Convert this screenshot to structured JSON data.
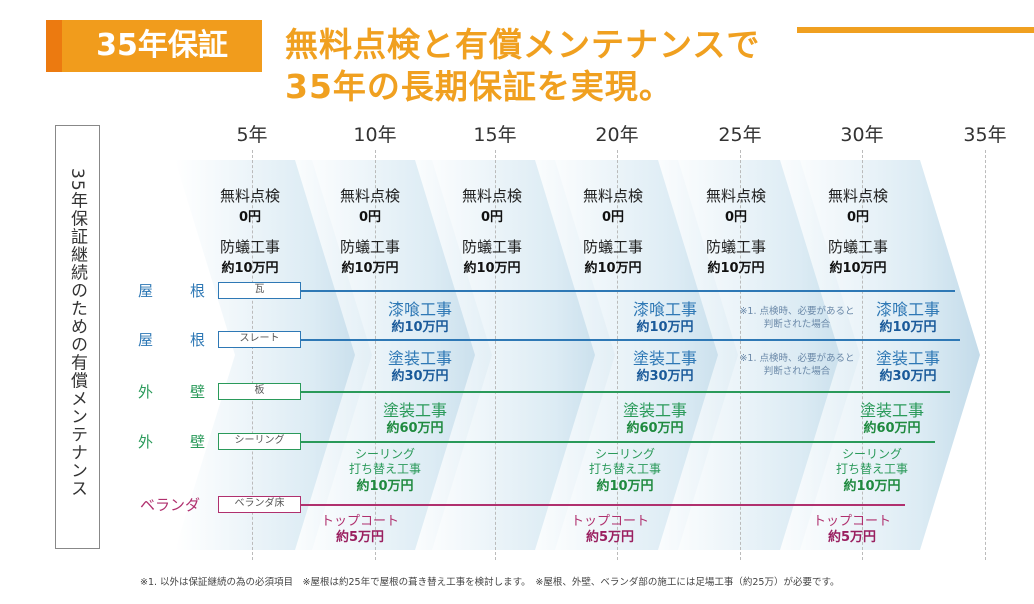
{
  "header": {
    "badge": "35年保証",
    "title_line1": "無料点検と有償メンテナンスで",
    "title_line2": "35年の長期保証を実現。",
    "accent": "#f0a020"
  },
  "side_label": "35年保証継続のための有償メンテナンス",
  "years": [
    "5年",
    "10年",
    "15年",
    "20年",
    "25年",
    "30年",
    "35年"
  ],
  "inspection": {
    "label": "無料点検",
    "cost": "0円",
    "termite_label": "防蟻工事",
    "termite_cost": "約10万円",
    "count": 6
  },
  "rows": [
    {
      "area": [
        "屋",
        "根"
      ],
      "material": "瓦",
      "color": "#2e78b5",
      "work": "漆喰工事",
      "cost": "約10万円"
    },
    {
      "area": [
        "屋",
        "根"
      ],
      "material": "スレート",
      "color": "#2e78b5",
      "work": "塗装工事",
      "cost": "約30万円"
    },
    {
      "area": [
        "外",
        "壁"
      ],
      "material": "板",
      "color": "#2a9a5a",
      "work": "塗装工事",
      "cost": "約60万円"
    },
    {
      "area": [
        "外",
        "壁"
      ],
      "material": "シーリング",
      "color": "#2a9a5a",
      "work_line1": "シーリング",
      "work_line2": "打ち替え工事",
      "cost": "約10万円"
    },
    {
      "area": [
        "ベランダ"
      ],
      "material": "ベランダ床",
      "color": "#b0306e",
      "work": "トップコート",
      "cost": "約5万円"
    }
  ],
  "note": {
    "line1": "※1. 点検時、必要があると",
    "line2": "判断された場合"
  },
  "footnote": "※1. 以外は保証継続の為の必須項目　※屋根は約25年で屋根の葺き替え工事を検討します。　※屋根、外壁、ベランダ部の施工には足場工事（約25万）が必要です。"
}
